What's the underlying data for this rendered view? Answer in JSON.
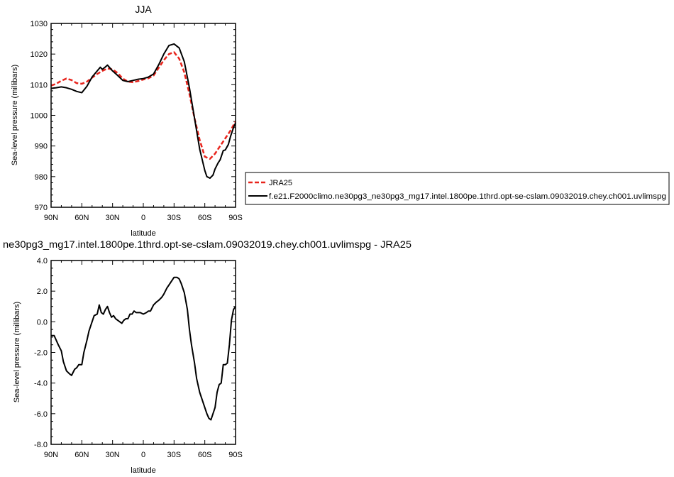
{
  "chart_data": [
    {
      "type": "line",
      "title": "JJA",
      "xlabel": "latitude",
      "ylabel": "Sea-level pressure (millibars)",
      "xlim": [
        -90,
        90
      ],
      "ylim": [
        970,
        1030
      ],
      "x_ticks": [
        -90,
        -60,
        -30,
        0,
        30,
        60,
        90
      ],
      "x_tick_labels": [
        "90N",
        "60N",
        "30N",
        "0",
        "30S",
        "60S",
        "90S"
      ],
      "y_ticks": [
        970,
        980,
        990,
        1000,
        1010,
        1020,
        1030
      ],
      "y_tick_labels": [
        "970",
        "980",
        "990",
        "1000",
        "1010",
        "1020",
        "1030"
      ],
      "series": [
        {
          "name": "JRA25",
          "color": "#e8241c",
          "dash": true,
          "x": [
            -90,
            -85,
            -80,
            -75,
            -70,
            -65,
            -60,
            -55,
            -50,
            -45,
            -40,
            -35,
            -30,
            -25,
            -20,
            -15,
            -10,
            -5,
            0,
            5,
            10,
            15,
            20,
            25,
            30,
            35,
            40,
            45,
            50,
            55,
            60,
            65,
            70,
            75,
            80,
            85,
            90
          ],
          "y": [
            1009.7,
            1010.3,
            1011.3,
            1012.0,
            1011.5,
            1010.5,
            1010.3,
            1011.0,
            1012.3,
            1013.5,
            1014.5,
            1015.3,
            1015.0,
            1013.8,
            1012.0,
            1011.0,
            1010.8,
            1011.2,
            1011.7,
            1012.1,
            1013.0,
            1015.5,
            1018.0,
            1020.0,
            1020.6,
            1018.5,
            1014.0,
            1007.0,
            999.0,
            992.0,
            986.5,
            985.8,
            987.5,
            990.0,
            992.5,
            995.0,
            998.0
          ]
        },
        {
          "name": "f.e21.F2000climo.ne30pg3_ne30pg3_mg17.intel.1800pe.1thrd.opt-se-cslam.09032019.chey.ch001.uvlimspg",
          "color": "#000000",
          "dash": false,
          "x": [
            -90,
            -85,
            -80,
            -75,
            -70,
            -65,
            -60,
            -55,
            -50,
            -45,
            -42,
            -40,
            -37,
            -35,
            -30,
            -25,
            -20,
            -15,
            -10,
            -5,
            0,
            5,
            10,
            15,
            20,
            25,
            30,
            35,
            40,
            45,
            50,
            55,
            60,
            62,
            65,
            68,
            70,
            73,
            75,
            78,
            80,
            83,
            85,
            88,
            90
          ],
          "y": [
            1008.8,
            1009.0,
            1009.3,
            1009.0,
            1008.5,
            1007.8,
            1007.4,
            1009.5,
            1012.5,
            1014.5,
            1015.7,
            1015.0,
            1015.8,
            1016.4,
            1014.5,
            1013.0,
            1011.4,
            1011.0,
            1011.4,
            1011.8,
            1012.0,
            1012.5,
            1013.5,
            1016.5,
            1020.0,
            1022.8,
            1023.3,
            1022.0,
            1017.5,
            1009.0,
            999.0,
            989.0,
            982.0,
            980.0,
            979.5,
            980.5,
            982.5,
            984.5,
            985.5,
            988.5,
            988.7,
            990.5,
            993.0,
            996.0,
            997.5
          ]
        }
      ],
      "legend_position": "right"
    },
    {
      "type": "line",
      "title": "ne30pg3_mg17.intel.1800pe.1thrd.opt-se-cslam.09032019.chey.ch001.uvlimspg - JRA25",
      "xlabel": "latitude",
      "ylabel": "Sea-level pressure (millibars)",
      "xlim": [
        -90,
        90
      ],
      "ylim": [
        -8,
        4
      ],
      "x_ticks": [
        -90,
        -60,
        -30,
        0,
        30,
        60,
        90
      ],
      "x_tick_labels": [
        "90N",
        "60N",
        "30N",
        "0",
        "30S",
        "60S",
        "90S"
      ],
      "y_ticks": [
        -8,
        -6,
        -4,
        -2,
        0,
        2,
        4
      ],
      "y_tick_labels": [
        "-8.0",
        "-6.0",
        "-4.0",
        "-2.0",
        "0.0",
        "2.0",
        "4.0"
      ],
      "series": [
        {
          "color": "#000000",
          "dash": false,
          "x": [
            -90,
            -87,
            -85,
            -83,
            -80,
            -78,
            -75,
            -72,
            -70,
            -67,
            -65,
            -63,
            -60,
            -58,
            -55,
            -53,
            -50,
            -48,
            -45,
            -43,
            -41,
            -39,
            -37,
            -35,
            -33,
            -31,
            -29,
            -27,
            -25,
            -23,
            -21,
            -19,
            -17,
            -15,
            -13,
            -11,
            -9,
            -7,
            -5,
            -3,
            0,
            3,
            5,
            7,
            10,
            13,
            15,
            18,
            20,
            23,
            25,
            28,
            30,
            33,
            35,
            37,
            40,
            43,
            45,
            47,
            50,
            52,
            55,
            57,
            60,
            62,
            64,
            66,
            68,
            70,
            72,
            74,
            76,
            78,
            80,
            82,
            84,
            86,
            88,
            90
          ],
          "y": [
            -0.9,
            -0.9,
            -1.2,
            -1.5,
            -1.9,
            -2.6,
            -3.2,
            -3.4,
            -3.5,
            -3.1,
            -3.0,
            -2.8,
            -2.8,
            -2.0,
            -1.2,
            -0.6,
            0.0,
            0.4,
            0.5,
            1.1,
            0.6,
            0.5,
            0.8,
            1.0,
            0.6,
            0.3,
            0.4,
            0.2,
            0.1,
            0.0,
            -0.1,
            0.1,
            0.2,
            0.2,
            0.5,
            0.5,
            0.7,
            0.6,
            0.6,
            0.6,
            0.5,
            0.6,
            0.7,
            0.7,
            1.1,
            1.3,
            1.4,
            1.6,
            1.8,
            2.2,
            2.4,
            2.7,
            2.9,
            2.9,
            2.8,
            2.5,
            1.9,
            0.8,
            -0.5,
            -1.5,
            -2.7,
            -3.7,
            -4.6,
            -5.0,
            -5.6,
            -6.0,
            -6.3,
            -6.4,
            -6.0,
            -5.6,
            -4.6,
            -4.1,
            -4.0,
            -2.8,
            -2.8,
            -2.7,
            -1.5,
            0.1,
            0.8,
            1.0
          ]
        }
      ]
    }
  ]
}
